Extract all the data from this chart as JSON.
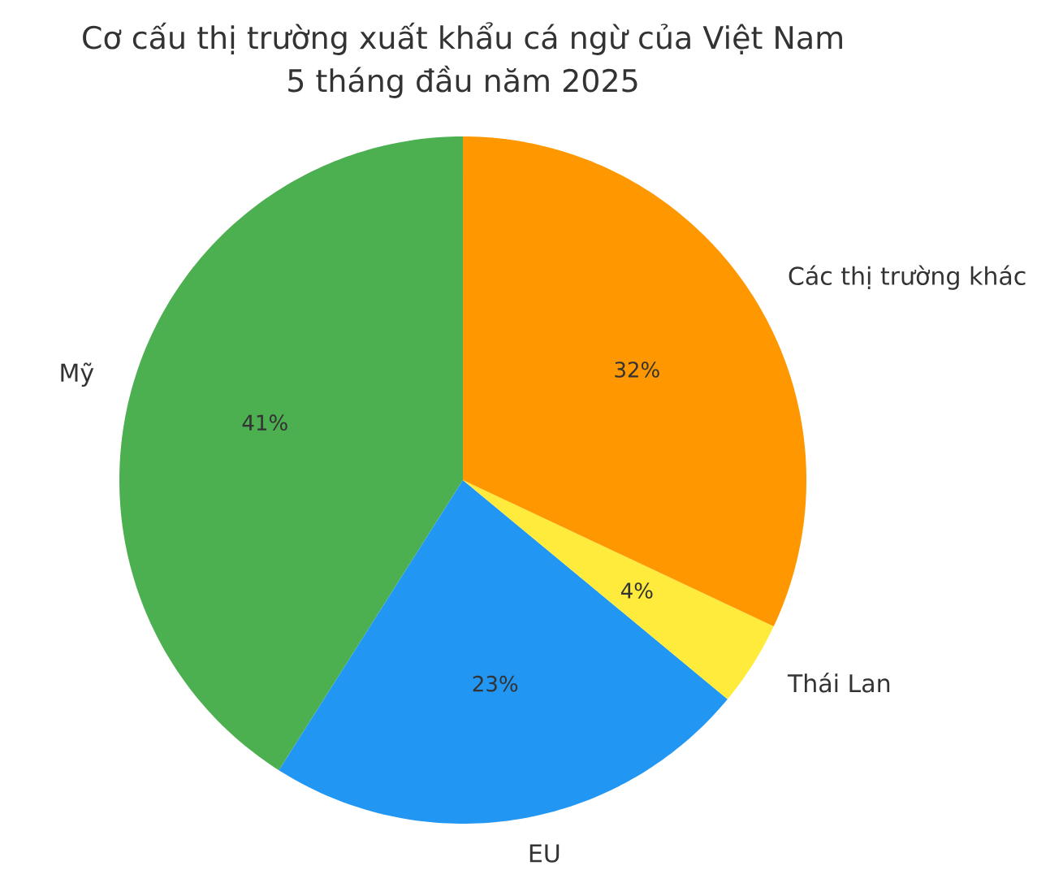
{
  "chart_data": {
    "type": "pie",
    "title": "Cơ cấu thị trường xuất khẩu cá ngừ của Việt Nam",
    "subtitle": "5 tháng đầu năm 2025",
    "categories": [
      "Mỹ",
      "EU",
      "Thái Lan",
      "Các thị trường khác"
    ],
    "values": [
      41,
      23,
      4,
      32
    ],
    "value_labels": [
      "41%",
      "23%",
      "4%",
      "32%"
    ],
    "colors": [
      "#4caf50",
      "#2196f3",
      "#ffeb3b",
      "#ff9800"
    ]
  }
}
